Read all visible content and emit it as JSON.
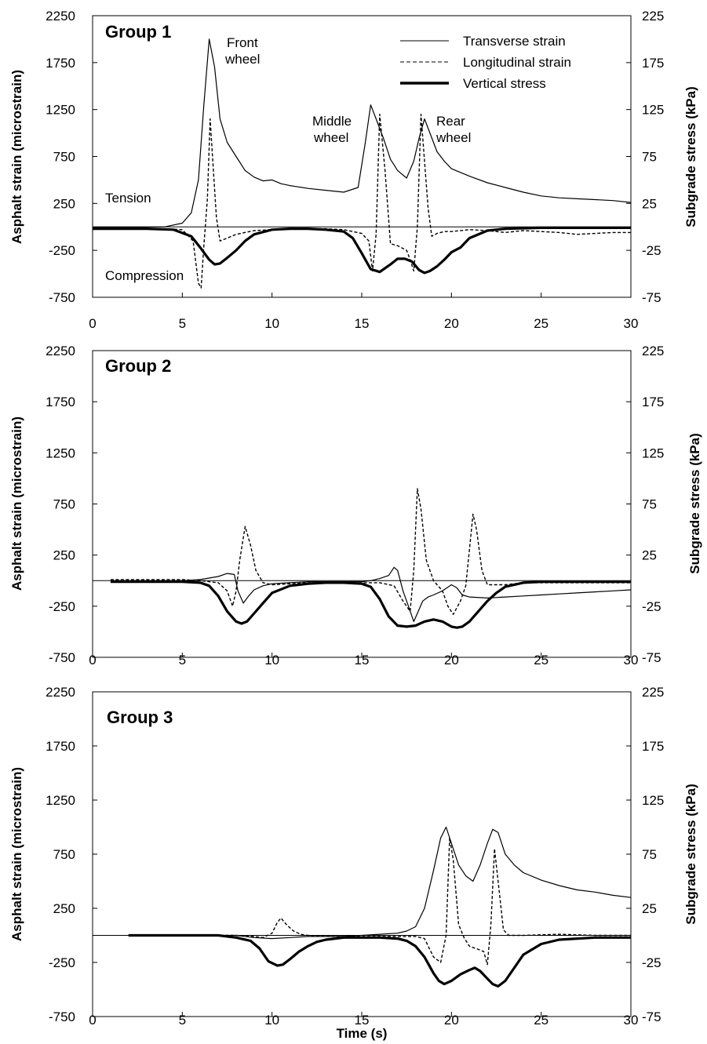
{
  "figure": {
    "xlabel": "Time (s)",
    "ylabel_left": "Asphalt strain (microstrain)",
    "ylabel_right": "Subgrade stress (kPa)"
  },
  "legend": {
    "transverse": "Transverse strain",
    "longitudinal": "Longitudinal strain",
    "vertical": "Vertical stress"
  },
  "annotations": {
    "front_1": "Front",
    "front_2": "wheel",
    "middle_1": "Middle",
    "middle_2": "wheel",
    "rear_1": "Rear",
    "rear_2": "wheel",
    "tension": "Tension",
    "compression": "Compression"
  },
  "chart_data": [
    {
      "type": "line",
      "title": "Group 1",
      "xlabel": "Time (s)",
      "ylabel": "Asphalt strain (microstrain)",
      "y2label": "Subgrade stress (kPa)",
      "xlim": [
        0,
        30
      ],
      "ylim": [
        -750,
        2250
      ],
      "y2lim": [
        -75,
        225
      ],
      "xticks": [
        0,
        5,
        10,
        15,
        20,
        25,
        30
      ],
      "yticks": [
        -750,
        -250,
        250,
        750,
        1250,
        1750,
        2250
      ],
      "y2ticks": [
        -75,
        -25,
        25,
        75,
        125,
        175,
        225
      ],
      "series": [
        {
          "name": "Transverse strain",
          "axis": "left",
          "style": "solid",
          "x": [
            0,
            4,
            5,
            5.5,
            5.9,
            6.2,
            6.5,
            6.8,
            7.1,
            7.5,
            8,
            8.5,
            9,
            9.5,
            10,
            10.5,
            11,
            12,
            13,
            14,
            14.8,
            15.2,
            15.5,
            15.8,
            16.2,
            16.6,
            17,
            17.5,
            17.9,
            18.2,
            18.5,
            18.8,
            19.2,
            19.6,
            20,
            21,
            22,
            23,
            24,
            25,
            26,
            27,
            28,
            29,
            30
          ],
          "y": [
            0,
            0,
            40,
            150,
            500,
            1300,
            2000,
            1700,
            1150,
            900,
            750,
            600,
            530,
            490,
            500,
            460,
            440,
            410,
            390,
            370,
            420,
            900,
            1300,
            1150,
            950,
            720,
            600,
            520,
            700,
            950,
            1150,
            1000,
            800,
            700,
            620,
            540,
            470,
            420,
            370,
            330,
            310,
            300,
            290,
            280,
            260
          ]
        },
        {
          "name": "Longitudinal strain",
          "axis": "left",
          "style": "dashed",
          "x": [
            0,
            4,
            5,
            5.6,
            5.9,
            6.05,
            6.2,
            6.4,
            6.55,
            6.7,
            6.9,
            7.1,
            7.5,
            8,
            9,
            10,
            11,
            12,
            13,
            14,
            15,
            15.4,
            15.6,
            15.8,
            16.0,
            16.3,
            16.6,
            17,
            17.5,
            17.7,
            17.9,
            18.1,
            18.3,
            18.5,
            18.7,
            18.9,
            19.2,
            19.6,
            20,
            21,
            22,
            23,
            24,
            25,
            26,
            27,
            28,
            29,
            30
          ],
          "y": [
            -20,
            -20,
            -30,
            -150,
            -600,
            -650,
            -200,
            300,
            1150,
            700,
            100,
            -150,
            -120,
            -80,
            -40,
            -30,
            -20,
            -20,
            -20,
            -30,
            -70,
            -150,
            -470,
            -80,
            1200,
            600,
            -180,
            -200,
            -250,
            -350,
            -470,
            0,
            1200,
            700,
            200,
            -100,
            -70,
            -50,
            -50,
            -30,
            -40,
            -60,
            -40,
            -50,
            -60,
            -80,
            -70,
            -60,
            -60
          ]
        },
        {
          "name": "Vertical stress",
          "axis": "right",
          "style": "bold",
          "x": [
            0,
            3,
            4.5,
            5.5,
            6,
            6.5,
            6.8,
            7.1,
            7.5,
            8,
            8.5,
            9,
            10,
            11,
            12,
            13,
            14,
            14.5,
            15,
            15.5,
            16,
            16.3,
            16.6,
            17,
            17.4,
            17.8,
            18.2,
            18.5,
            18.8,
            19.2,
            19.6,
            20,
            20.5,
            21,
            22,
            23,
            25,
            30
          ],
          "y": [
            -2,
            -2,
            -3,
            -10,
            -22,
            -35,
            -40,
            -39,
            -33,
            -25,
            -15,
            -8,
            -3,
            -2,
            -2,
            -3,
            -5,
            -12,
            -28,
            -45,
            -48,
            -44,
            -40,
            -34,
            -34,
            -37,
            -46,
            -49,
            -47,
            -42,
            -35,
            -27,
            -22,
            -12,
            -4,
            -2,
            -1,
            -1
          ]
        }
      ]
    },
    {
      "type": "line",
      "title": "Group 2",
      "xlabel": "Time (s)",
      "ylabel": "Asphalt strain (microstrain)",
      "y2label": "Subgrade stress (kPa)",
      "xlim": [
        0,
        30
      ],
      "ylim": [
        -750,
        2250
      ],
      "y2lim": [
        -75,
        225
      ],
      "xticks": [
        0,
        5,
        10,
        15,
        20,
        25,
        30
      ],
      "yticks": [
        -750,
        -250,
        250,
        750,
        1250,
        1750,
        2250
      ],
      "y2ticks": [
        -75,
        -25,
        25,
        75,
        125,
        175,
        225
      ],
      "series": [
        {
          "name": "Transverse strain",
          "axis": "left",
          "style": "solid",
          "x": [
            1,
            5,
            6,
            7,
            7.5,
            7.9,
            8.1,
            8.4,
            8.7,
            9,
            9.5,
            10,
            11,
            12,
            13,
            14,
            15,
            15.5,
            16,
            16.5,
            16.8,
            17.0,
            17.3,
            17.6,
            17.9,
            18.1,
            18.4,
            18.7,
            19,
            19.5,
            20,
            20.3,
            20.6,
            21,
            22,
            23,
            24,
            25,
            26,
            27,
            28,
            29,
            30
          ],
          "y": [
            0,
            0,
            10,
            40,
            70,
            60,
            -100,
            -220,
            -150,
            -90,
            -50,
            -30,
            -20,
            -10,
            -10,
            -10,
            -10,
            0,
            20,
            50,
            130,
            100,
            -100,
            -250,
            -400,
            -320,
            -200,
            -160,
            -140,
            -100,
            -40,
            -70,
            -140,
            -160,
            -170,
            -160,
            -150,
            -140,
            -130,
            -120,
            -110,
            -100,
            -90
          ]
        },
        {
          "name": "Longitudinal strain",
          "axis": "left",
          "style": "dashed",
          "x": [
            1,
            5,
            6,
            7,
            7.5,
            7.8,
            8.0,
            8.2,
            8.5,
            8.8,
            9.1,
            9.5,
            10,
            11,
            12,
            13,
            14,
            15,
            16,
            16.8,
            17.3,
            17.7,
            17.9,
            18.1,
            18.3,
            18.6,
            19,
            19.5,
            19.8,
            20.1,
            20.5,
            20.8,
            21.0,
            21.2,
            21.4,
            21.7,
            22,
            23,
            24,
            26,
            28,
            30
          ],
          "y": [
            10,
            10,
            0,
            -20,
            -100,
            -250,
            -100,
            200,
            530,
            350,
            100,
            -20,
            -40,
            -30,
            -20,
            -20,
            -20,
            -20,
            -20,
            -50,
            -200,
            -300,
            100,
            900,
            700,
            200,
            0,
            -100,
            -250,
            -330,
            -200,
            -50,
            300,
            650,
            500,
            100,
            -40,
            -40,
            -20,
            -20,
            -20,
            -20
          ]
        },
        {
          "name": "Vertical stress",
          "axis": "right",
          "style": "bold",
          "x": [
            1,
            5,
            6,
            6.5,
            7,
            7.5,
            8,
            8.3,
            8.6,
            9,
            9.5,
            10,
            11,
            12,
            13,
            14,
            15,
            15.5,
            16,
            16.5,
            17,
            17.5,
            18,
            18.5,
            19,
            19.5,
            20,
            20.3,
            20.6,
            21,
            21.5,
            22,
            22.5,
            23,
            24,
            25,
            30
          ],
          "y": [
            -1,
            -1,
            -2,
            -5,
            -15,
            -30,
            -40,
            -42,
            -40,
            -32,
            -22,
            -12,
            -5,
            -3,
            -2,
            -2,
            -3,
            -6,
            -18,
            -35,
            -44,
            -45,
            -44,
            -40,
            -38,
            -40,
            -45,
            -46,
            -45,
            -40,
            -30,
            -20,
            -12,
            -6,
            -2,
            -1,
            -1
          ]
        }
      ]
    },
    {
      "type": "line",
      "title": "Group 3",
      "xlabel": "Time (s)",
      "ylabel": "Asphalt strain (microstrain)",
      "y2label": "Subgrade stress (kPa)",
      "xlim": [
        0,
        30
      ],
      "ylim": [
        -750,
        2250
      ],
      "y2lim": [
        -75,
        225
      ],
      "xticks": [
        0,
        5,
        10,
        15,
        20,
        25,
        30
      ],
      "yticks": [
        -750,
        -250,
        250,
        750,
        1250,
        1750,
        2250
      ],
      "y2ticks": [
        -75,
        -25,
        25,
        75,
        125,
        175,
        225
      ],
      "series": [
        {
          "name": "Transverse strain",
          "axis": "left",
          "style": "solid",
          "x": [
            2,
            8,
            9,
            10,
            11,
            12,
            14,
            15,
            16,
            17,
            17.5,
            18,
            18.5,
            19,
            19.4,
            19.7,
            20,
            20.4,
            20.8,
            21.2,
            21.6,
            22,
            22.3,
            22.6,
            23,
            23.5,
            24,
            25,
            26,
            27,
            28,
            29,
            30
          ],
          "y": [
            0,
            0,
            -20,
            -30,
            -20,
            -10,
            -10,
            0,
            10,
            20,
            40,
            80,
            250,
            600,
            900,
            1000,
            850,
            650,
            550,
            500,
            650,
            850,
            980,
            950,
            750,
            650,
            580,
            510,
            460,
            420,
            400,
            370,
            350
          ]
        },
        {
          "name": "Longitudinal strain",
          "axis": "left",
          "style": "dashed",
          "x": [
            2,
            8,
            9,
            9.5,
            10,
            10.3,
            10.5,
            10.8,
            11.2,
            11.6,
            12,
            13,
            14,
            15,
            16,
            17,
            18,
            18.5,
            19,
            19.4,
            19.7,
            19.9,
            20.1,
            20.4,
            20.7,
            21,
            21.5,
            21.8,
            22.0,
            22.2,
            22.4,
            22.6,
            22.9,
            23.2,
            24,
            26,
            28,
            30
          ],
          "y": [
            0,
            0,
            -10,
            -20,
            20,
            120,
            160,
            100,
            40,
            10,
            0,
            -10,
            -10,
            -10,
            -10,
            -10,
            -10,
            -30,
            -200,
            -250,
            0,
            900,
            700,
            100,
            -20,
            -100,
            -130,
            -150,
            -270,
            100,
            800,
            500,
            50,
            0,
            0,
            10,
            0,
            0
          ]
        },
        {
          "name": "Vertical stress",
          "axis": "right",
          "style": "bold",
          "x": [
            2,
            7,
            8,
            8.8,
            9.3,
            9.8,
            10.3,
            10.6,
            11,
            11.5,
            12,
            12.5,
            13,
            14,
            15,
            16,
            17,
            17.5,
            18,
            18.5,
            19,
            19.3,
            19.6,
            20,
            20.5,
            21,
            21.3,
            21.6,
            22,
            22.3,
            22.6,
            23,
            23.5,
            24,
            25,
            26,
            28,
            30
          ],
          "y": [
            0,
            0,
            -2,
            -5,
            -12,
            -24,
            -28,
            -27,
            -22,
            -15,
            -10,
            -6,
            -4,
            -2,
            -2,
            -2,
            -3,
            -5,
            -10,
            -20,
            -35,
            -42,
            -45,
            -42,
            -36,
            -32,
            -30,
            -33,
            -40,
            -45,
            -47,
            -42,
            -30,
            -18,
            -8,
            -4,
            -2,
            -2
          ]
        }
      ]
    }
  ]
}
